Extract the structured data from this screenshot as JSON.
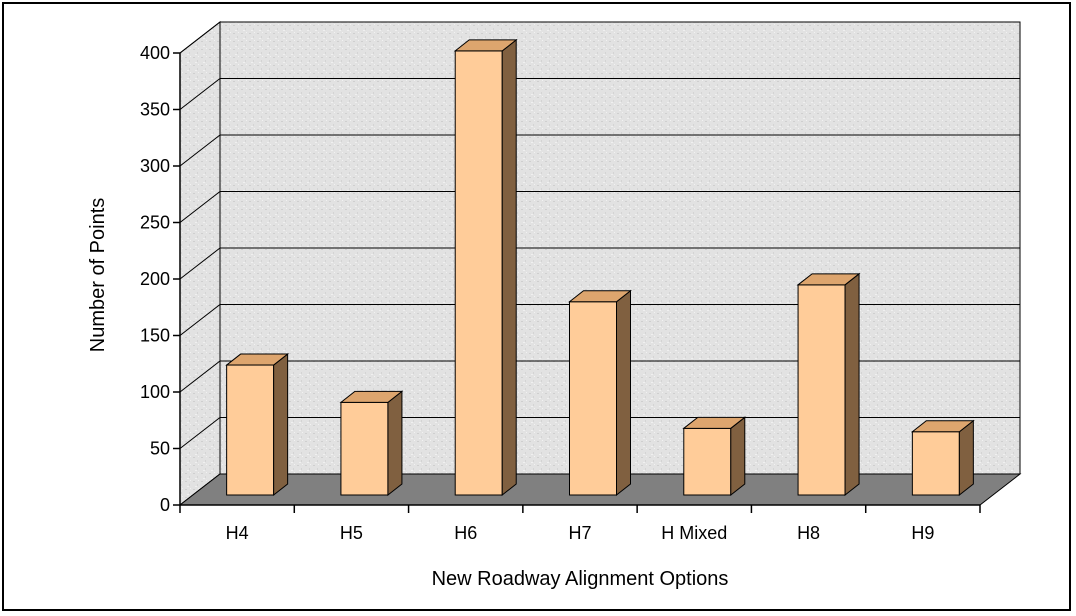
{
  "chart_data": {
    "type": "bar",
    "style": "3d-column",
    "categories": [
      "H4",
      "H5",
      "H6",
      "H7",
      "H Mixed",
      "H8",
      "H9"
    ],
    "values": [
      115,
      82,
      393,
      171,
      59,
      186,
      56
    ],
    "xlabel": "New Roadway Alignment Options",
    "ylabel": "Number of Points",
    "ylim": [
      0,
      400
    ],
    "yticks": [
      0,
      50,
      100,
      150,
      200,
      250,
      300,
      350,
      400
    ],
    "grid": true,
    "legend": "none",
    "colors": {
      "bar_front": "#FFCC99",
      "bar_side": "#806040",
      "bar_top": "#DDA56E",
      "floor": "#808080",
      "wall": "#E4E4E4"
    }
  }
}
